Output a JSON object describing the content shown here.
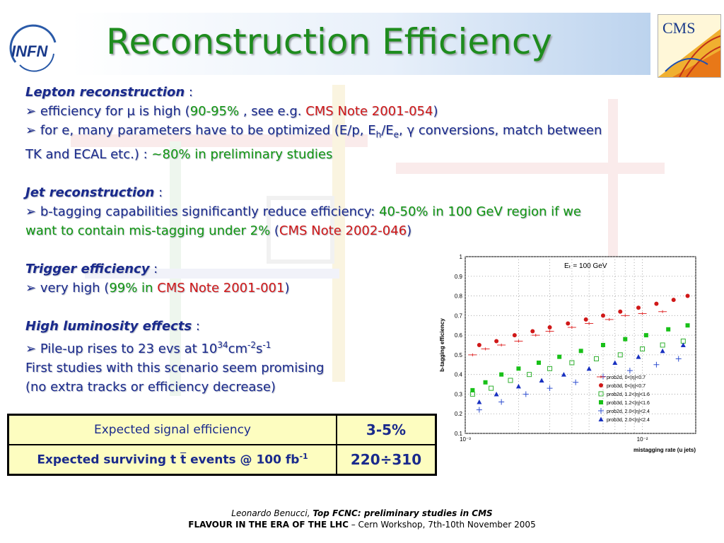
{
  "title": "Reconstruction Efficiency",
  "logos": {
    "left": "INFN",
    "right": "CMS"
  },
  "sections": {
    "lepton": {
      "header": "Lepton reconstruction",
      "colon": " :",
      "b1_pre": "efficiency for ",
      "b1_mu": "μ",
      "b1_mid": " is high (",
      "b1_val": "90-95%",
      "b1_mid2": "  , see e.g. ",
      "b1_note": "CMS Note 2001-054",
      "b1_end": ")",
      "b2_pre": "for e, many parameters have to be optimized (E/p, E",
      "b2_sub1": "h",
      "b2_mid": "/E",
      "b2_sub2": "e",
      "b2_mid2": ", γ conversions, match between",
      "b2_line2_pre": "TK and ECAL etc.) : ",
      "b2_val": "~80% in preliminary studies"
    },
    "jet": {
      "header": "Jet reconstruction",
      "colon": " :",
      "b1_pre": "b-tagging capabilities significantly reduce efficiency: ",
      "b1_val": "40-50% in 100 GeV region if we",
      "b1_line2_val": "want to contain mis-tagging under 2%",
      "b1_open": " (",
      "b1_note": "CMS Note 2002-046",
      "b1_end": ")"
    },
    "trigger": {
      "header": "Trigger efficiency",
      "colon": " :",
      "b1_pre": "very high (",
      "b1_val": "99% in ",
      "b1_note": "CMS Note 2001-001",
      "b1_end": ")"
    },
    "lumi": {
      "header": "High luminosity effects",
      "colon": " :",
      "b1_pre": "Pile-up rises to 23 evs at 10",
      "b1_sup1": "34",
      "b1_mid": "cm",
      "b1_sup2": "-2",
      "b1_mid2": "s",
      "b1_sup3": "-1",
      "line2": "First studies  with this scenario seem promising",
      "line3": "(no extra tracks or efficiency decrease)"
    }
  },
  "chart_data": {
    "type": "scatter",
    "annotation": "Eₜ = 100 GeV",
    "ylabel": "b-tagging efficiency",
    "xlabel": "mistagging rate (u jets)",
    "x_log": true,
    "xlim": [
      0.001,
      0.02
    ],
    "ylim": [
      0.1,
      1.0
    ],
    "yticks": [
      "0.1",
      "0.2",
      "0.3",
      "0.4",
      "0.5",
      "0.6",
      "0.7",
      "0.8",
      "0.9",
      "1"
    ],
    "xticks": [
      "10⁻³",
      "10⁻²"
    ],
    "legend": [
      "prob2d, 0<|η|<0.7",
      "prob3d, 0<|η|<0.7",
      "prob2d, 1.2<|η|<1.6",
      "prob3d, 1.2<|η|<1.6",
      "prob2d, 2.0<|η|<2.4",
      "prob3d, 2.0<|η|<2.4"
    ],
    "series": [
      {
        "name": "prob2d, 0<|η|<0.7",
        "color": "#e03030",
        "marker": "hline",
        "x": [
          0.0011,
          0.0013,
          0.0016,
          0.002,
          0.0025,
          0.003,
          0.004,
          0.005,
          0.0065,
          0.008,
          0.01,
          0.013
        ],
        "y": [
          0.5,
          0.53,
          0.55,
          0.57,
          0.6,
          0.62,
          0.64,
          0.66,
          0.68,
          0.7,
          0.71,
          0.72
        ]
      },
      {
        "name": "prob3d, 0<|η|<0.7",
        "color": "#d01818",
        "marker": "filled-circle",
        "x": [
          0.0012,
          0.0015,
          0.0019,
          0.0024,
          0.003,
          0.0038,
          0.0048,
          0.006,
          0.0075,
          0.0095,
          0.012,
          0.015,
          0.018
        ],
        "y": [
          0.55,
          0.57,
          0.6,
          0.62,
          0.64,
          0.66,
          0.68,
          0.7,
          0.72,
          0.74,
          0.76,
          0.78,
          0.8
        ]
      },
      {
        "name": "prob2d, 1.2<|η|<1.6",
        "color": "#30b030",
        "marker": "open-square",
        "x": [
          0.0011,
          0.0014,
          0.0018,
          0.0023,
          0.003,
          0.004,
          0.0055,
          0.0075,
          0.01,
          0.013,
          0.017
        ],
        "y": [
          0.3,
          0.33,
          0.37,
          0.4,
          0.43,
          0.46,
          0.48,
          0.5,
          0.53,
          0.55,
          0.57
        ]
      },
      {
        "name": "prob3d, 1.2<|η|<1.6",
        "color": "#18c018",
        "marker": "filled-square",
        "x": [
          0.0011,
          0.0013,
          0.0016,
          0.002,
          0.0026,
          0.0034,
          0.0045,
          0.006,
          0.008,
          0.0105,
          0.014,
          0.018
        ],
        "y": [
          0.32,
          0.36,
          0.4,
          0.43,
          0.46,
          0.49,
          0.52,
          0.55,
          0.58,
          0.6,
          0.63,
          0.65
        ]
      },
      {
        "name": "prob2d, 2.0<|η|<2.4",
        "color": "#3050d0",
        "marker": "cross",
        "x": [
          0.0012,
          0.0016,
          0.0022,
          0.003,
          0.0042,
          0.006,
          0.0085,
          0.012,
          0.016
        ],
        "y": [
          0.22,
          0.26,
          0.3,
          0.33,
          0.36,
          0.39,
          0.42,
          0.45,
          0.48
        ]
      },
      {
        "name": "prob3d, 2.0<|η|<2.4",
        "color": "#1830c0",
        "marker": "filled-triangle",
        "x": [
          0.0012,
          0.0015,
          0.002,
          0.0027,
          0.0036,
          0.005,
          0.007,
          0.0095,
          0.013,
          0.017
        ],
        "y": [
          0.26,
          0.3,
          0.34,
          0.37,
          0.4,
          0.43,
          0.46,
          0.49,
          0.52,
          0.55
        ]
      }
    ]
  },
  "summary_table": {
    "row1_label": "Expected signal efficiency",
    "row1_value": "3-5%",
    "row2_label_pre": "Expected surviving t ",
    "row2_tbar": "t",
    "row2_label_mid": " events @ 100 fb",
    "row2_sup": "-1",
    "row2_value": "220÷310"
  },
  "footer": {
    "author": "Leonardo Benucci, ",
    "talk": "Top FCNC: preliminary studies in CMS",
    "conference": "FLAVOUR IN THE ERA OF THE LHC",
    "venue": " – Cern Workshop, 7th-10th November 2005"
  }
}
